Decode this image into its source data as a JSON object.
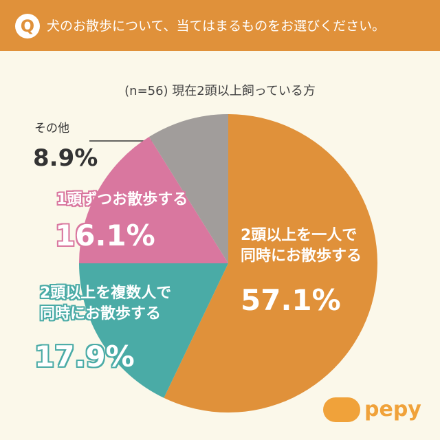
{
  "header": {
    "badge": "Q"
  },
  "chart_data": {
    "type": "pie",
    "title": "犬のお散歩について、当てはまるものをお選びください。",
    "subtitle": "(n=56) 現在2頭以上飼っている方",
    "categories": [
      "2頭以上を一人で\n同時にお散歩する",
      "2頭以上を複数人で\n同時にお散歩する",
      "1頭ずつお散歩する",
      "その他"
    ],
    "values": [
      57.1,
      17.9,
      16.1,
      8.9
    ],
    "value_labels": [
      "57.1%",
      "17.9%",
      "16.1%",
      "8.9%"
    ],
    "colors": [
      "#e0913a",
      "#4aaba6",
      "#d9779f",
      "#a19d9b"
    ]
  },
  "logo": "pepy"
}
